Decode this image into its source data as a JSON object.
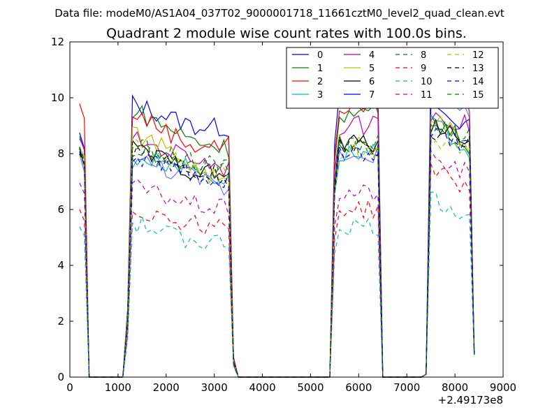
{
  "chart_data": {
    "type": "line",
    "suptitle": "Data file: modeM0/AS1A04_037T02_9000001718_11661cztM0_level2_quad_clean.evt",
    "title": "Quadrant 2 module wise count rates with 100.0s bins.",
    "xlabel": "",
    "ylabel": "",
    "x_offset_label": "+2.49173e8",
    "xlim": [
      0,
      9000
    ],
    "ylim": [
      0,
      12
    ],
    "xticks": [
      0,
      1000,
      2000,
      3000,
      4000,
      5000,
      6000,
      7000,
      8000,
      9000
    ],
    "yticks": [
      0,
      2,
      4,
      6,
      8,
      10,
      12
    ],
    "legend_position": "top-right",
    "legend_columns": 4,
    "x": [
      200,
      300,
      400,
      500,
      600,
      700,
      800,
      900,
      1000,
      1100,
      1200,
      1300,
      1400,
      1500,
      1600,
      1700,
      1800,
      1900,
      2000,
      2100,
      2200,
      2300,
      2400,
      2500,
      2600,
      2700,
      2800,
      2900,
      3000,
      3100,
      3200,
      3300,
      3400,
      3500,
      3600,
      3700,
      3800,
      3900,
      4000,
      4100,
      4200,
      4300,
      4400,
      4500,
      4600,
      4700,
      4800,
      4900,
      5000,
      5100,
      5200,
      5300,
      5400,
      5500,
      5600,
      5700,
      5800,
      5900,
      6000,
      6100,
      6200,
      6300,
      6400,
      6500,
      6600,
      6700,
      6800,
      6900,
      7000,
      7100,
      7200,
      7300,
      7400,
      7500,
      7600,
      7700,
      7800,
      7900,
      8000,
      8100,
      8200,
      8300,
      8400
    ],
    "series": [
      {
        "name": "0",
        "color": "#0000ff",
        "dash": "solid",
        "base": [
          8.7,
          9.8,
          9.0,
          8.9,
          10.2,
          9.7,
          8.9
        ]
      },
      {
        "name": "1",
        "color": "#008000",
        "dash": "solid",
        "base": [
          8.6,
          9.6,
          8.5,
          8.2,
          9.4,
          9.3,
          8.3
        ]
      },
      {
        "name": "2",
        "color": "#ff0000",
        "dash": "solid",
        "base": [
          9.8,
          9.5,
          8.3,
          8.3,
          9.7,
          10.8,
          9.8
        ]
      },
      {
        "name": "3",
        "color": "#00bfbf",
        "dash": "solid",
        "base": [
          8.2,
          7.9,
          7.5,
          7.0,
          8.0,
          9.1,
          8.1
        ]
      },
      {
        "name": "4",
        "color": "#bf00bf",
        "dash": "solid",
        "base": [
          8.6,
          8.5,
          7.9,
          7.5,
          9.0,
          9.5,
          9.0
        ]
      },
      {
        "name": "5",
        "color": "#bfbf00",
        "dash": "solid",
        "base": [
          8.3,
          8.8,
          7.6,
          6.9,
          8.4,
          9.4,
          8.2
        ]
      },
      {
        "name": "6",
        "color": "#000000",
        "dash": "solid",
        "base": [
          8.1,
          8.2,
          7.4,
          7.2,
          8.4,
          8.9,
          8.6
        ]
      },
      {
        "name": "7",
        "color": "#0000ff",
        "dash": "solid",
        "base": [
          7.9,
          7.8,
          7.2,
          6.7,
          8.0,
          11.0,
          9.4
        ]
      },
      {
        "name": "8",
        "color": "#008000",
        "dash": "dashed",
        "base": [
          8.2,
          8.1,
          7.5,
          7.4,
          8.3,
          9.0,
          8.6
        ]
      },
      {
        "name": "9",
        "color": "#ff0000",
        "dash": "dashed",
        "base": [
          6.0,
          6.0,
          5.5,
          5.4,
          6.0,
          7.5,
          6.7
        ]
      },
      {
        "name": "10",
        "color": "#00bfbf",
        "dash": "dashed",
        "base": [
          5.4,
          5.5,
          4.9,
          4.8,
          5.4,
          6.4,
          5.8
        ]
      },
      {
        "name": "11",
        "color": "#bf00bf",
        "dash": "dashed",
        "base": [
          7.0,
          6.8,
          6.2,
          6.0,
          6.6,
          7.8,
          7.3
        ]
      },
      {
        "name": "12",
        "color": "#bfbf00",
        "dash": "dashed",
        "base": [
          8.0,
          8.3,
          7.6,
          7.3,
          8.1,
          8.6,
          8.2
        ]
      },
      {
        "name": "13",
        "color": "#000000",
        "dash": "dashed",
        "base": [
          8.1,
          8.2,
          7.5,
          7.1,
          8.2,
          8.8,
          8.5
        ]
      },
      {
        "name": "14",
        "color": "#0000ff",
        "dash": "dashed",
        "base": [
          8.0,
          7.9,
          7.3,
          7.0,
          8.0,
          8.7,
          8.3
        ]
      },
      {
        "name": "15",
        "color": "#008000",
        "dash": "dashed",
        "base": [
          8.2,
          8.3,
          7.7,
          7.5,
          8.4,
          9.0,
          8.7
        ]
      }
    ]
  }
}
